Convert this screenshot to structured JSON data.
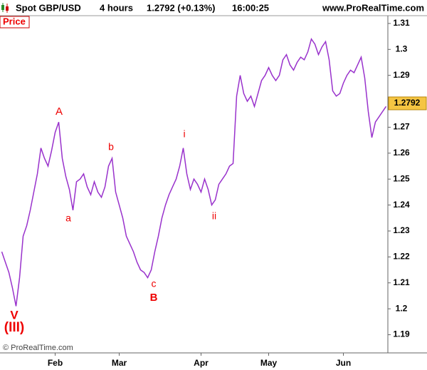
{
  "header": {
    "instrument": "Spot GBP/USD",
    "timeframe": "4 hours",
    "quote": "1.2792 (+0.13%)",
    "time": "16:00:25",
    "site": "www.ProRealTime.com"
  },
  "footer": "© ProRealTime.com",
  "chart_data": {
    "type": "line",
    "categories": [
      null,
      null,
      null,
      null,
      null,
      null,
      null,
      null,
      null,
      null,
      null,
      null,
      null,
      null,
      null,
      "Feb",
      null,
      null,
      null,
      null,
      null,
      null,
      null,
      null,
      null,
      null,
      null,
      null,
      null,
      null,
      null,
      null,
      null,
      "Mar",
      null,
      null,
      null,
      null,
      null,
      null,
      null,
      null,
      null,
      null,
      null,
      null,
      null,
      null,
      null,
      null,
      null,
      null,
      null,
      null,
      null,
      null,
      "Apr",
      null,
      null,
      null,
      null,
      null,
      null,
      null,
      null,
      null,
      null,
      null,
      null,
      null,
      null,
      null,
      null,
      null,
      null,
      "May",
      null,
      null,
      null,
      null,
      null,
      null,
      null,
      null,
      null,
      null,
      null,
      null,
      null,
      null,
      null,
      null,
      null,
      null,
      null,
      null,
      "Jun",
      null,
      null,
      null,
      null,
      null,
      null,
      null,
      null,
      null,
      null,
      null,
      null
    ],
    "series": [
      {
        "name": "Price",
        "color": "#9932cc",
        "values": [
          1.222,
          1.218,
          1.214,
          1.208,
          1.201,
          1.212,
          1.228,
          1.232,
          1.238,
          1.245,
          1.252,
          1.262,
          1.258,
          1.255,
          1.261,
          1.268,
          1.272,
          1.258,
          1.251,
          1.246,
          1.238,
          1.249,
          1.25,
          1.252,
          1.247,
          1.244,
          1.249,
          1.245,
          1.243,
          1.247,
          1.255,
          1.258,
          1.245,
          1.24,
          1.235,
          1.228,
          1.225,
          1.222,
          1.218,
          1.215,
          1.214,
          1.212,
          1.215,
          1.222,
          1.228,
          1.235,
          1.24,
          1.244,
          1.247,
          1.25,
          1.255,
          1.262,
          1.252,
          1.246,
          1.25,
          1.248,
          1.245,
          1.25,
          1.246,
          1.24,
          1.242,
          1.248,
          1.25,
          1.252,
          1.255,
          1.256,
          1.282,
          1.29,
          1.283,
          1.28,
          1.282,
          1.278,
          1.283,
          1.288,
          1.29,
          1.293,
          1.29,
          1.288,
          1.29,
          1.296,
          1.298,
          1.294,
          1.292,
          1.295,
          1.297,
          1.296,
          1.299,
          1.304,
          1.302,
          1.298,
          1.301,
          1.303,
          1.296,
          1.284,
          1.282,
          1.283,
          1.287,
          1.29,
          1.292,
          1.291,
          1.294,
          1.297,
          1.289,
          1.276,
          1.266,
          1.272,
          1.274,
          1.276,
          1.278
        ]
      }
    ],
    "ylim": [
      1.183,
      1.313
    ],
    "yticks": [
      1.19,
      1.2,
      1.21,
      1.22,
      1.23,
      1.24,
      1.25,
      1.26,
      1.27,
      1.28,
      1.29,
      1.3,
      1.31
    ],
    "last_price": 1.2792,
    "annotations": [
      {
        "text": "A"
      },
      {
        "text": "a"
      },
      {
        "text": "b"
      },
      {
        "text": "c"
      },
      {
        "text": "B"
      },
      {
        "text": "i"
      },
      {
        "text": "ii"
      },
      {
        "text": "V"
      },
      {
        "text": "(III)"
      }
    ]
  }
}
